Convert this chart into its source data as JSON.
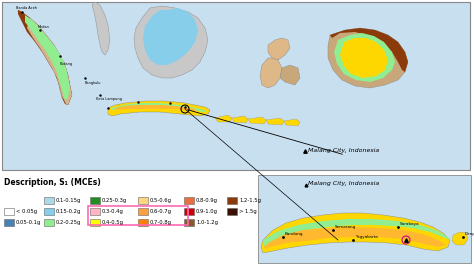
{
  "subtitle": "Description, S₁ (MCEs)",
  "malang_label": "Malang City, Indonesia",
  "bg_color": "#f0f0f0",
  "ocean_color": "#c8dff0",
  "map_border": "#aaaaaa",
  "legend_items_row1": [
    {
      "label": "0.1-0.15g",
      "color": "#ADD8E6"
    },
    {
      "label": "0.25-0.3g",
      "color": "#228B22"
    },
    {
      "label": "0.5-0.6g",
      "color": "#FFD580"
    },
    {
      "label": "0.8-0.9g",
      "color": "#E87040"
    },
    {
      "label": "1.2-1.5g",
      "color": "#8B3A0A"
    }
  ],
  "legend_items_row2": [
    {
      "label": "0.15-0.2g",
      "color": "#87CEEB"
    },
    {
      "label": "0.3-0.4g",
      "color": "#FFB6C1"
    },
    {
      "label": "0.6-0.7g",
      "color": "#FFA040"
    },
    {
      "label": "0.9-1.0g",
      "color": "#CC0000"
    },
    {
      "label": "> 1.5g",
      "color": "#3B1005"
    }
  ],
  "legend_items_row3": [
    {
      "label": "0.2-0.25g",
      "color": "#90EE90"
    },
    {
      "label": "0.4-0.5g",
      "color": "#FFFF00"
    },
    {
      "label": "0.7-0.8g",
      "color": "#FF8000"
    },
    {
      "label": "1.0-1.2g",
      "color": "#8B5A2B"
    }
  ],
  "legend_col0": [
    {
      "label": "< 0.05g",
      "color": "#FFFFFF"
    },
    {
      "label": "0.05-0.1g",
      "color": "#4682B4"
    }
  ],
  "highlight_color": "#FF69B4",
  "inset_title": "Malang City, Indonesia"
}
